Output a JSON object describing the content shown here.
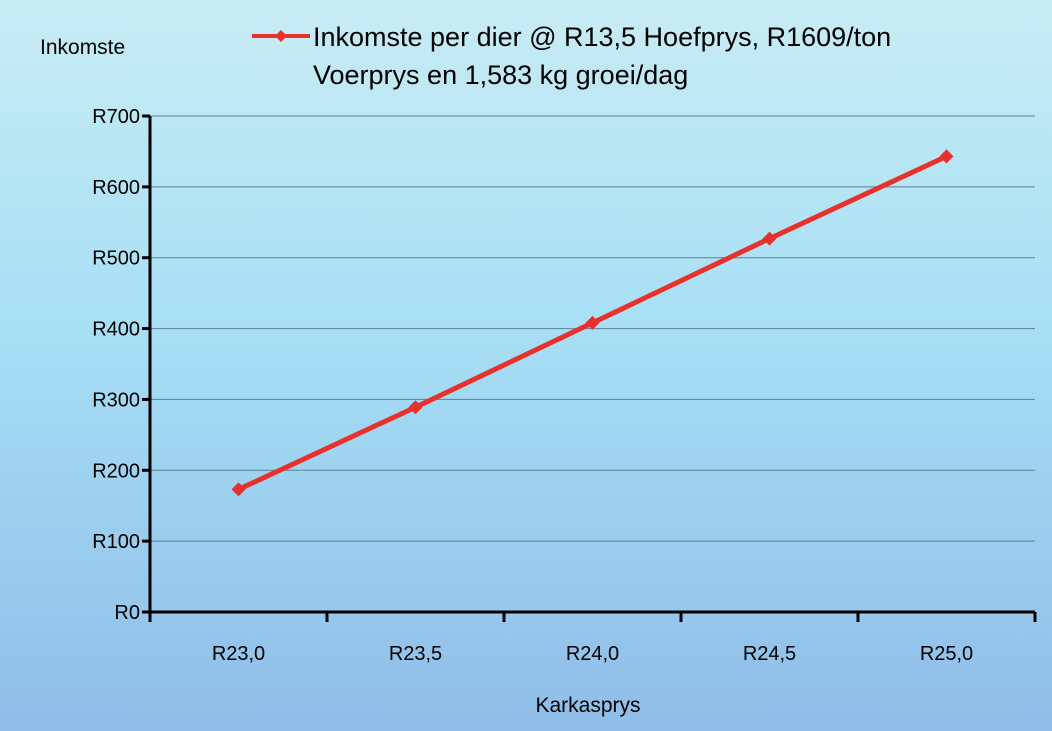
{
  "chart_data": {
    "type": "line",
    "categories": [
      "R23,0",
      "R23,5",
      "R24,0",
      "R24,5",
      "R25,0"
    ],
    "series": [
      {
        "name": "Inkomste per dier @ R13,5  Hoefprys,  R1609/ton Voerprys en 1,583 kg groei/dag",
        "name_lines": [
          "Inkomste per dier @ R13,5  Hoefprys,  R1609/ton",
          "Voerprys en 1,583 kg groei/dag"
        ],
        "values": [
          173,
          289,
          408,
          527,
          643
        ],
        "color": "#e8312c"
      }
    ],
    "ylabel": "Inkomste",
    "xlabel": "Karkasprys",
    "ylim": [
      0,
      700
    ],
    "yticks": [
      0,
      100,
      200,
      300,
      400,
      500,
      600,
      700
    ],
    "ytick_labels": [
      "R0",
      "R100",
      "R200",
      "R300",
      "R400",
      "R500",
      "R600",
      "R700"
    ],
    "grid": true,
    "legend_position": "top",
    "colors": {
      "grid": "#5d7f99",
      "axis": "#000000",
      "line": "#e8312c"
    }
  }
}
